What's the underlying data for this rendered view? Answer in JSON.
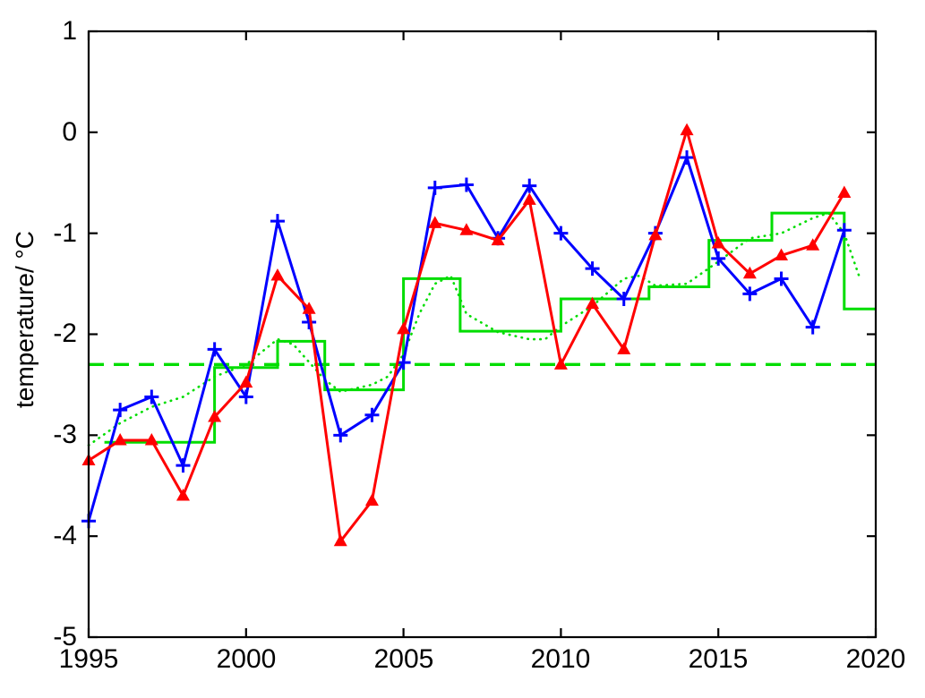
{
  "figure": {
    "background": "#ffffff"
  },
  "axes": {
    "x_tick_labels": [
      "1995",
      "2000",
      "2005",
      "2010",
      "2015",
      "2020"
    ],
    "x_ticks": [
      1995,
      2000,
      2005,
      2010,
      2015,
      2020
    ],
    "y_tick_labels": [
      "1",
      "0",
      "-1",
      "-2",
      "-3",
      "-4",
      "-5"
    ],
    "y_ticks": [
      1,
      0,
      -1,
      -2,
      -3,
      -4,
      -5
    ],
    "axis_color": "#000000"
  },
  "chart_data": {
    "type": "line",
    "title": "",
    "xlabel": "",
    "ylabel": "temperature/ °C",
    "xlim": [
      1995,
      2020
    ],
    "ylim": [
      -5,
      1
    ],
    "grid": false,
    "legend_position": "none",
    "x": [
      1995,
      1996,
      1997,
      1998,
      1999,
      2000,
      2001,
      2002,
      2003,
      2004,
      2005,
      2006,
      2007,
      2008,
      2009,
      2010,
      2011,
      2012,
      2013,
      2014,
      2015,
      2016,
      2017,
      2018,
      2019
    ],
    "series": [
      {
        "name": "overall-mean-dashed",
        "color": "#00dd00",
        "style": "dashed",
        "marker": "none",
        "width": 3.4,
        "x": [
          1995,
          2020
        ],
        "values": [
          -2.3,
          -2.3
        ]
      },
      {
        "name": "smoothed-curve-dotted",
        "color": "#00dd00",
        "style": "dotted",
        "marker": "none",
        "width": 2.6,
        "x": [
          1995,
          1996,
          1997,
          1998,
          1999,
          2000,
          2001,
          2001.5,
          2002.5,
          2003,
          2004,
          2004.5,
          2005,
          2005.5,
          2006,
          2006.5,
          2007,
          2008,
          2009,
          2009.5,
          2010,
          2011,
          2012,
          2012.5,
          2013,
          2014,
          2015,
          2016,
          2017,
          2018,
          2018.5,
          2019,
          2019.5
        ],
        "values": [
          -3.1,
          -2.88,
          -2.72,
          -2.62,
          -2.42,
          -2.3,
          -2.05,
          -2.1,
          -2.45,
          -2.57,
          -2.5,
          -2.42,
          -2.2,
          -1.8,
          -1.5,
          -1.42,
          -1.8,
          -1.98,
          -2.05,
          -2.05,
          -1.92,
          -1.72,
          -1.45,
          -1.42,
          -1.52,
          -1.5,
          -1.28,
          -1.05,
          -1.0,
          -0.85,
          -0.8,
          -1.0,
          -1.45
        ]
      },
      {
        "name": "regime-means-step",
        "color": "#00dd00",
        "style": "step",
        "marker": "none",
        "width": 3,
        "segments": [
          [
            1995.5,
            1999,
            -3.07
          ],
          [
            1999,
            2001,
            -2.33
          ],
          [
            2001,
            2002.5,
            -2.07
          ],
          [
            2002.5,
            2005,
            -2.55
          ],
          [
            2005,
            2006.8,
            -1.45
          ],
          [
            2006.8,
            2010,
            -1.97
          ],
          [
            2010,
            2012.8,
            -1.65
          ],
          [
            2012.8,
            2014.7,
            -1.53
          ],
          [
            2014.7,
            2016.7,
            -1.07
          ],
          [
            2016.7,
            2019,
            -0.8
          ],
          [
            2019,
            2020,
            -1.75
          ]
        ]
      },
      {
        "name": "annual-temperature-blue-plus",
        "color": "#0000ff",
        "style": "solid",
        "marker": "plus",
        "width": 3,
        "values": [
          -3.85,
          -2.75,
          -2.62,
          -3.3,
          -2.15,
          -2.62,
          -0.88,
          -1.88,
          -3.0,
          -2.8,
          -2.28,
          -0.55,
          -0.52,
          -1.05,
          -0.53,
          -1.0,
          -1.35,
          -1.65,
          -1.0,
          -0.25,
          -1.25,
          -1.6,
          -1.45,
          -1.93,
          -0.97
        ]
      },
      {
        "name": "annual-temperature-red-triangle",
        "color": "#ff0000",
        "style": "solid",
        "marker": "triangle",
        "width": 3,
        "values": [
          -3.25,
          -3.05,
          -3.05,
          -3.6,
          -2.82,
          -2.48,
          -1.42,
          -1.75,
          -4.05,
          -3.65,
          -1.95,
          -0.9,
          -0.97,
          -1.07,
          -0.67,
          -2.3,
          -1.7,
          -2.15,
          -1.02,
          0.02,
          -1.1,
          -1.4,
          -1.22,
          -1.12,
          -0.6
        ]
      }
    ]
  }
}
